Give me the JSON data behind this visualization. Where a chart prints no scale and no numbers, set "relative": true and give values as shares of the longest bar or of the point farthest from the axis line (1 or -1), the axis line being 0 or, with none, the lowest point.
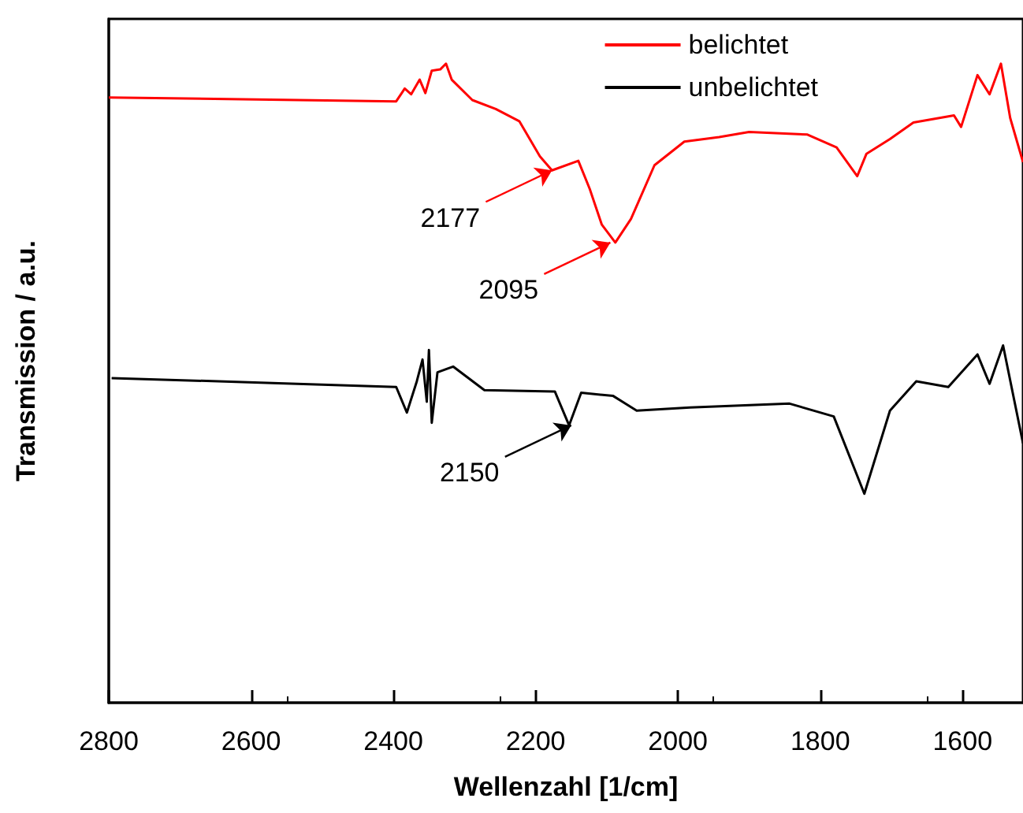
{
  "chart_data": {
    "type": "line",
    "relative": true,
    "xlabel": "Wellenzahl [1/cm]",
    "ylabel": "Transmission / a.u.",
    "xlim": [
      2800,
      1515
    ],
    "xticks": [
      2800,
      2600,
      2400,
      2200,
      2000,
      1800,
      1600
    ],
    "legend": "top right",
    "grid": false,
    "marker": "none",
    "line_style": "solid",
    "series": [
      {
        "name": "belichtet",
        "color": "#ff0000",
        "x": [
          2800,
          2396,
          2384,
          2375,
          2363,
          2355,
          2346,
          2334,
          2326,
          2318,
          2289,
          2256,
          2223,
          2194,
          2177,
          2140,
          2124,
          2107,
          2088,
          2066,
          2033,
          1991,
          1942,
          1900,
          1818,
          1777,
          1748,
          1735,
          1702,
          1669,
          1612,
          1602,
          1579,
          1562,
          1546,
          1533,
          1515
        ],
        "values": [
          0.947,
          0.941,
          0.961,
          0.952,
          0.975,
          0.954,
          0.989,
          0.991,
          1,
          0.975,
          0.943,
          0.929,
          0.91,
          0.855,
          0.833,
          0.848,
          0.804,
          0.748,
          0.72,
          0.757,
          0.841,
          0.878,
          0.885,
          0.893,
          0.889,
          0.869,
          0.824,
          0.859,
          0.882,
          0.908,
          0.919,
          0.901,
          0.982,
          0.952,
          1,
          0.915,
          0.846
        ]
      },
      {
        "name": "unbelichtet",
        "color": "#000000",
        "x": [
          2796,
          2561,
          2396,
          2381,
          2367,
          2359,
          2353,
          2350,
          2346,
          2338,
          2326,
          2316,
          2272,
          2173,
          2153,
          2136,
          2091,
          2058,
          1983,
          1843,
          1781,
          1738,
          1702,
          1665,
          1620,
          1579,
          1562,
          1543,
          1515
        ],
        "values": [
          0.508,
          0.5,
          0.494,
          0.454,
          0.503,
          0.537,
          0.471,
          0.552,
          0.438,
          0.517,
          0.522,
          0.526,
          0.489,
          0.487,
          0.434,
          0.485,
          0.48,
          0.457,
          0.462,
          0.468,
          0.448,
          0.327,
          0.457,
          0.503,
          0.494,
          0.545,
          0.499,
          0.559,
          0.406
        ]
      }
    ],
    "annotations": [
      {
        "text": "2177",
        "x": 2177,
        "y": 0.833
      },
      {
        "text": "2095",
        "x": 2095,
        "y": 0.72
      },
      {
        "text": "2150",
        "x": 2150,
        "y": 0.434
      }
    ]
  }
}
